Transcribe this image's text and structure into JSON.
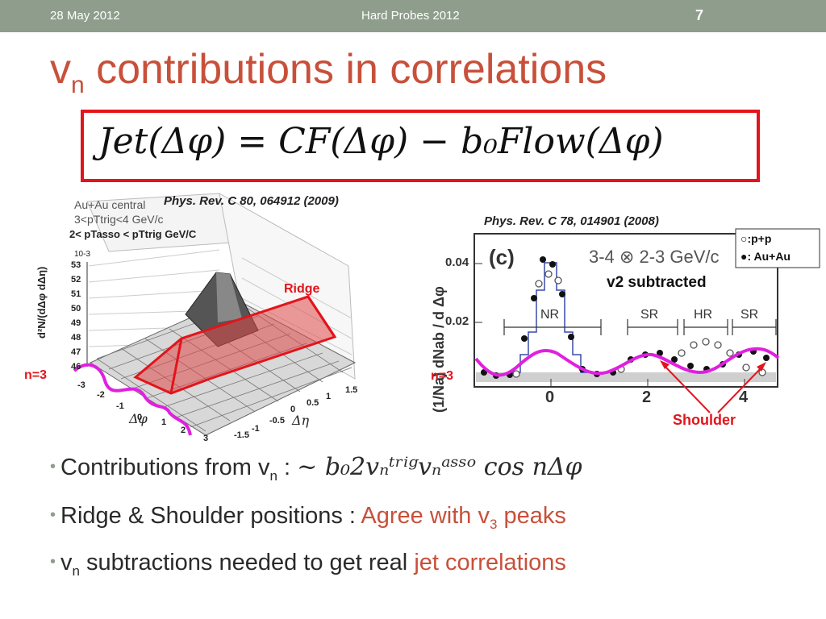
{
  "header": {
    "date": "28 May 2012",
    "conference": "Hard Probes 2012",
    "slide_number": "7"
  },
  "title": {
    "main": "v",
    "sub": "n",
    "rest": "contributions in correlations"
  },
  "equation": {
    "text": "Jet(Δφ) = CF(Δφ) − b₀Flow(Δφ)"
  },
  "left_figure": {
    "reference": "Phys. Rev. C 80, 064912 (2009)",
    "system": "Au+Au central",
    "trig_range": "3<pTtrig<4 GeV/c",
    "asso_range": "2< pTasso < pTtrig GeV/C",
    "z_exponent": "10-3",
    "z_label": "d²N/(dΔφ dΔη)",
    "z_ticks": [
      "53",
      "52",
      "51",
      "50",
      "49",
      "48",
      "47",
      "46"
    ],
    "phi_ticks": [
      "-3",
      "-2",
      "-1",
      "0",
      "1",
      "2",
      "3"
    ],
    "eta_ticks": [
      "-1.5",
      "-1",
      "-0.5",
      "0",
      "0.5",
      "1",
      "1.5"
    ],
    "phi_label": "Δφ",
    "eta_label": "Δη",
    "ridge_label": "Ridge",
    "n3_label": "n=3"
  },
  "right_figure": {
    "reference": "Phys. Rev. C 78, 014901 (2008)",
    "panel": "(c)",
    "bin": "3-4 ⊗ 2-3 GeV/c",
    "y_label": "(1/Na) dNab / d Δφ",
    "y_ticks": [
      "0.04",
      "0.02"
    ],
    "x_ticks": [
      "0",
      "2",
      "4"
    ],
    "regions": [
      "NR",
      "SR",
      "HR",
      "SR"
    ],
    "legend": [
      "○:p+p",
      "●: Au+Au"
    ],
    "v2_note": "v2 subtracted",
    "n3_label": "n=3",
    "shoulder_label": "Shoulder"
  },
  "bullets": [
    {
      "prefix": "Contributions from v",
      "sub": "n",
      "suffix": " : ",
      "math": "~ b₀2vₙᵗʳⁱᵍvₙᵃˢˢᵒ cos nΔφ"
    },
    {
      "prefix": "Ridge & Shoulder positions : ",
      "highlight": "Agree with v",
      "hsub": "3",
      "hsuffix": " peaks"
    },
    {
      "prefix": "v",
      "sub": "n",
      "suffix": " subtractions needed to get real ",
      "highlight": "jet correlations"
    }
  ],
  "colors": {
    "accent": "#c8503a",
    "header": "#8e9d8c",
    "box": "#e3141b",
    "curve": "#e020e0"
  }
}
